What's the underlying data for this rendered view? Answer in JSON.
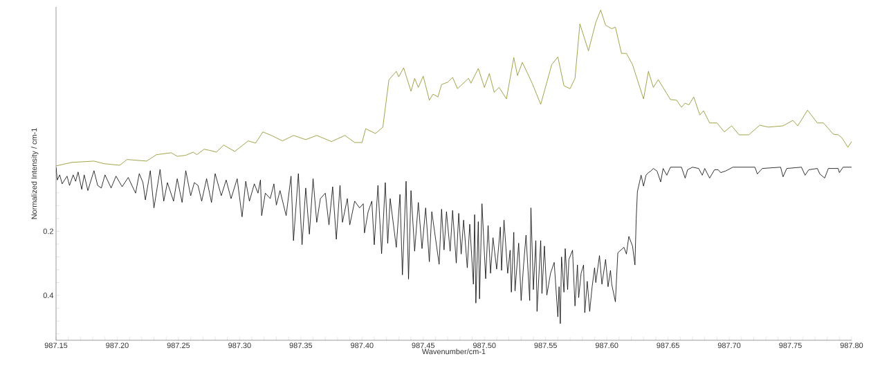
{
  "chart_data": {
    "type": "line",
    "xlabel": "Wavenumber/cm-1",
    "ylabel": "Normalized Intensity / cm-1",
    "xlim": [
      987.15,
      987.8
    ],
    "ylim": [
      0.54,
      -0.5
    ],
    "xticks": [
      {
        "value": 987.15,
        "label": "987.15"
      },
      {
        "value": 987.16,
        "label": null
      },
      {
        "value": 987.17,
        "label": null
      },
      {
        "value": 987.18,
        "label": null
      },
      {
        "value": 987.19,
        "label": null
      },
      {
        "value": 987.2,
        "label": "987.20"
      },
      {
        "value": 987.21,
        "label": null
      },
      {
        "value": 987.22,
        "label": null
      },
      {
        "value": 987.23,
        "label": null
      },
      {
        "value": 987.24,
        "label": null
      },
      {
        "value": 987.25,
        "label": "987.25"
      },
      {
        "value": 987.26,
        "label": null
      },
      {
        "value": 987.27,
        "label": null
      },
      {
        "value": 987.28,
        "label": null
      },
      {
        "value": 987.29,
        "label": null
      },
      {
        "value": 987.3,
        "label": "987.30"
      },
      {
        "value": 987.31,
        "label": null
      },
      {
        "value": 987.32,
        "label": null
      },
      {
        "value": 987.33,
        "label": null
      },
      {
        "value": 987.34,
        "label": null
      },
      {
        "value": 987.35,
        "label": "987.35"
      },
      {
        "value": 987.36,
        "label": null
      },
      {
        "value": 987.37,
        "label": null
      },
      {
        "value": 987.38,
        "label": null
      },
      {
        "value": 987.39,
        "label": null
      },
      {
        "value": 987.4,
        "label": "987.40"
      },
      {
        "value": 987.41,
        "label": null
      },
      {
        "value": 987.42,
        "label": null
      },
      {
        "value": 987.43,
        "label": null
      },
      {
        "value": 987.44,
        "label": null
      },
      {
        "value": 987.45,
        "label": "987.45"
      },
      {
        "value": 987.46,
        "label": null
      },
      {
        "value": 987.47,
        "label": null
      },
      {
        "value": 987.48,
        "label": null
      },
      {
        "value": 987.49,
        "label": null
      },
      {
        "value": 987.5,
        "label": "987.50"
      },
      {
        "value": 987.51,
        "label": null
      },
      {
        "value": 987.52,
        "label": null
      },
      {
        "value": 987.53,
        "label": null
      },
      {
        "value": 987.54,
        "label": null
      },
      {
        "value": 987.55,
        "label": "987.55"
      },
      {
        "value": 987.56,
        "label": null
      },
      {
        "value": 987.57,
        "label": null
      },
      {
        "value": 987.58,
        "label": null
      },
      {
        "value": 987.59,
        "label": null
      },
      {
        "value": 987.6,
        "label": "987.60"
      },
      {
        "value": 987.61,
        "label": null
      },
      {
        "value": 987.62,
        "label": null
      },
      {
        "value": 987.63,
        "label": null
      },
      {
        "value": 987.64,
        "label": null
      },
      {
        "value": 987.65,
        "label": "987.65"
      },
      {
        "value": 987.66,
        "label": null
      },
      {
        "value": 987.67,
        "label": null
      },
      {
        "value": 987.68,
        "label": null
      },
      {
        "value": 987.69,
        "label": null
      },
      {
        "value": 987.7,
        "label": "987.70"
      },
      {
        "value": 987.71,
        "label": null
      },
      {
        "value": 987.72,
        "label": null
      },
      {
        "value": 987.73,
        "label": null
      },
      {
        "value": 987.74,
        "label": null
      },
      {
        "value": 987.75,
        "label": "987.75"
      },
      {
        "value": 987.76,
        "label": null
      },
      {
        "value": 987.77,
        "label": null
      },
      {
        "value": 987.78,
        "label": null
      },
      {
        "value": 987.79,
        "label": null
      },
      {
        "value": 987.8,
        "label": "987.80"
      }
    ],
    "yticks": [
      {
        "value": 0.08,
        "label": null
      },
      {
        "value": 0.12,
        "label": null
      },
      {
        "value": 0.16,
        "label": null
      },
      0.2,
      {
        "value": 0.24,
        "label": null
      },
      {
        "value": 0.28,
        "label": null
      },
      {
        "value": 0.32,
        "label": null
      },
      {
        "value": 0.36,
        "label": null
      },
      0.4,
      {
        "value": 0.44,
        "label": null
      },
      {
        "value": 0.48,
        "label": null
      },
      {
        "value": 0.52,
        "label": null
      }
    ],
    "series": [
      {
        "color": "#8b8b1e",
        "x": [
          987.15,
          987.163,
          987.181,
          987.189,
          987.202,
          987.208,
          987.224,
          987.232,
          987.244,
          987.249,
          987.256,
          987.262,
          987.265,
          987.271,
          987.276,
          987.281,
          987.287,
          987.296,
          987.307,
          987.313,
          987.319,
          987.326,
          987.335,
          987.344,
          987.354,
          987.363,
          987.375,
          987.386,
          987.394,
          987.4,
          987.403,
          987.411,
          987.417,
          987.422,
          987.428,
          987.43,
          987.434,
          987.44,
          987.443,
          987.446,
          987.45,
          987.455,
          987.458,
          987.462,
          987.465,
          987.47,
          987.474,
          987.478,
          987.487,
          987.489,
          987.495,
          987.5,
          987.504,
          987.508,
          987.512,
          987.518,
          987.524,
          987.527,
          987.531,
          987.539,
          987.546,
          987.555,
          987.56,
          987.565,
          987.57,
          987.574,
          987.578,
          987.585,
          987.591,
          987.595,
          987.599,
          987.604,
          987.607,
          987.612,
          987.616,
          987.621,
          987.63,
          987.634,
          987.638,
          987.642,
          987.652,
          987.657,
          987.661,
          987.664,
          987.667,
          987.671,
          987.676,
          987.679,
          987.684,
          987.69,
          987.696,
          987.702,
          987.708,
          987.716,
          987.725,
          987.732,
          987.744,
          987.752,
          987.756,
          987.764,
          987.772,
          987.777,
          987.785,
          987.789,
          987.792,
          987.797,
          987.8
        ],
        "values": [
          -0.004,
          -0.015,
          -0.019,
          -0.011,
          -0.006,
          -0.024,
          -0.019,
          -0.039,
          -0.045,
          -0.034,
          -0.037,
          -0.047,
          -0.039,
          -0.056,
          -0.052,
          -0.047,
          -0.069,
          -0.049,
          -0.082,
          -0.075,
          -0.11,
          -0.099,
          -0.082,
          -0.099,
          -0.086,
          -0.099,
          -0.08,
          -0.099,
          -0.077,
          -0.077,
          -0.12,
          -0.105,
          -0.125,
          -0.273,
          -0.299,
          -0.282,
          -0.31,
          -0.237,
          -0.277,
          -0.249,
          -0.284,
          -0.209,
          -0.228,
          -0.219,
          -0.258,
          -0.265,
          -0.28,
          -0.245,
          -0.277,
          -0.262,
          -0.308,
          -0.249,
          -0.292,
          -0.234,
          -0.249,
          -0.213,
          -0.342,
          -0.286,
          -0.327,
          -0.262,
          -0.196,
          -0.32,
          -0.344,
          -0.254,
          -0.245,
          -0.277,
          -0.447,
          -0.363,
          -0.452,
          -0.49,
          -0.443,
          -0.432,
          -0.437,
          -0.355,
          -0.355,
          -0.32,
          -0.213,
          -0.299,
          -0.249,
          -0.273,
          -0.211,
          -0.209,
          -0.187,
          -0.2,
          -0.194,
          -0.219,
          -0.163,
          -0.176,
          -0.138,
          -0.138,
          -0.11,
          -0.129,
          -0.101,
          -0.101,
          -0.131,
          -0.125,
          -0.129,
          -0.146,
          -0.129,
          -0.178,
          -0.138,
          -0.138,
          -0.103,
          -0.101,
          -0.092,
          -0.062,
          -0.08
        ]
      },
      {
        "color": "#000000",
        "x": [
          987.15,
          987.151,
          987.153,
          987.155,
          987.159,
          987.161,
          987.164,
          987.166,
          987.168,
          987.171,
          987.173,
          987.176,
          987.178,
          987.181,
          987.184,
          987.187,
          987.19,
          987.195,
          987.199,
          987.204,
          987.209,
          987.212,
          987.215,
          987.218,
          987.221,
          987.223,
          987.227,
          987.23,
          987.235,
          987.238,
          987.241,
          987.246,
          987.249,
          987.253,
          987.256,
          987.26,
          987.263,
          987.266,
          987.269,
          987.273,
          987.277,
          987.28,
          987.285,
          987.289,
          987.293,
          987.298,
          987.302,
          987.305,
          987.308,
          987.312,
          987.315,
          987.317,
          987.318,
          987.321,
          987.325,
          987.328,
          987.33,
          987.333,
          987.338,
          987.342,
          987.344,
          987.348,
          987.351,
          987.354,
          987.357,
          987.36,
          987.363,
          987.366,
          987.37,
          987.373,
          987.376,
          987.379,
          987.382,
          987.384,
          987.388,
          987.39,
          987.394,
          987.398,
          987.401,
          987.402,
          987.405,
          987.408,
          987.41,
          987.413,
          987.416,
          987.419,
          987.421,
          987.423,
          987.428,
          987.431,
          987.433,
          987.436,
          987.438,
          987.44,
          987.443,
          987.446,
          987.449,
          987.452,
          987.455,
          987.457,
          987.463,
          987.465,
          987.467,
          987.469,
          987.472,
          987.474,
          987.477,
          987.479,
          987.481,
          987.483,
          987.486,
          987.488,
          987.491,
          987.492,
          987.493,
          987.495,
          987.496,
          987.498,
          987.501,
          987.503,
          987.505,
          987.507,
          987.51,
          987.513,
          987.514,
          987.516,
          987.519,
          987.521,
          987.522,
          987.524,
          987.525,
          987.528,
          987.53,
          987.532,
          987.534,
          987.537,
          987.538,
          987.54,
          987.542,
          987.543,
          987.546,
          987.547,
          987.549,
          987.551,
          987.554,
          987.557,
          987.56,
          987.561,
          987.562,
          987.563,
          987.565,
          987.566,
          987.568,
          987.569,
          987.572,
          987.574,
          987.576,
          987.577,
          987.579,
          987.581,
          987.582,
          987.584,
          987.586,
          987.588,
          987.59,
          987.591,
          987.594,
          987.596,
          987.599,
          987.601,
          987.603,
          987.604,
          987.607,
          987.609,
          987.614,
          987.616,
          987.618,
          987.621,
          987.623,
          987.624,
          987.625,
          987.627,
          987.628,
          987.63,
          987.632,
          987.634,
          987.636,
          987.638,
          987.641,
          987.644,
          987.646,
          987.649,
          987.652,
          987.661,
          987.664,
          987.666,
          987.67,
          987.675,
          987.678,
          987.68,
          987.684,
          987.688,
          987.691,
          987.693,
          987.697,
          987.703,
          987.721,
          987.723,
          987.727,
          987.742,
          987.744,
          987.747,
          987.759,
          987.762,
          987.765,
          987.772,
          987.774,
          987.778,
          987.781,
          987.789,
          987.79,
          987.793,
          987.8
        ],
        "values": [
          0.0,
          0.04,
          0.024,
          0.052,
          0.028,
          0.057,
          0.024,
          0.044,
          0.015,
          0.069,
          0.024,
          0.073,
          0.048,
          0.011,
          0.057,
          0.065,
          0.024,
          0.065,
          0.028,
          0.061,
          0.032,
          0.057,
          0.081,
          0.02,
          0.048,
          0.102,
          0.011,
          0.127,
          0.007,
          0.106,
          0.048,
          0.106,
          0.036,
          0.11,
          0.011,
          0.089,
          0.048,
          0.057,
          0.106,
          0.036,
          0.11,
          0.02,
          0.089,
          0.04,
          0.098,
          0.036,
          0.155,
          0.044,
          0.106,
          0.052,
          0.081,
          0.04,
          0.151,
          0.081,
          0.098,
          0.052,
          0.118,
          0.073,
          0.151,
          0.028,
          0.229,
          0.02,
          0.242,
          0.065,
          0.209,
          0.036,
          0.172,
          0.098,
          0.081,
          0.18,
          0.061,
          0.225,
          0.057,
          0.172,
          0.098,
          0.18,
          0.106,
          0.127,
          0.114,
          0.205,
          0.139,
          0.106,
          0.242,
          0.057,
          0.27,
          0.048,
          0.238,
          0.098,
          0.25,
          0.085,
          0.336,
          0.044,
          0.349,
          0.073,
          0.262,
          0.11,
          0.254,
          0.127,
          0.295,
          0.139,
          0.303,
          0.131,
          0.258,
          0.139,
          0.262,
          0.135,
          0.299,
          0.144,
          0.271,
          0.165,
          0.314,
          0.178,
          0.365,
          0.148,
          0.424,
          0.17,
          0.411,
          0.114,
          0.348,
          0.182,
          0.331,
          0.22,
          0.318,
          0.187,
          0.322,
          0.165,
          0.331,
          0.259,
          0.39,
          0.203,
          0.386,
          0.237,
          0.416,
          0.305,
          0.212,
          0.416,
          0.127,
          0.382,
          0.229,
          0.45,
          0.229,
          0.394,
          0.246,
          0.399,
          0.331,
          0.297,
          0.467,
          0.373,
          0.488,
          0.28,
          0.39,
          0.254,
          0.382,
          0.288,
          0.259,
          0.433,
          0.305,
          0.407,
          0.331,
          0.305,
          0.454,
          0.356,
          0.45,
          0.373,
          0.314,
          0.36,
          0.276,
          0.365,
          0.288,
          0.373,
          0.322,
          0.365,
          0.42,
          0.267,
          0.25,
          0.271,
          0.216,
          0.246,
          0.305,
          0.161,
          0.076,
          0.042,
          0.025,
          0.059,
          0.025,
          0.017,
          0.012,
          0.004,
          0.012,
          0.046,
          0.004,
          0.025,
          0.0,
          0.0,
          0.034,
          0.008,
          0.0,
          0.004,
          0.025,
          0.004,
          0.034,
          0.008,
          0.008,
          0.017,
          0.012,
          0.0,
          0.0,
          0.021,
          0.004,
          0.0,
          0.03,
          0.004,
          0.0,
          0.025,
          0.008,
          0.004,
          0.021,
          0.034,
          0.004,
          0.004,
          0.017,
          0.0,
          0.0
        ]
      }
    ]
  }
}
